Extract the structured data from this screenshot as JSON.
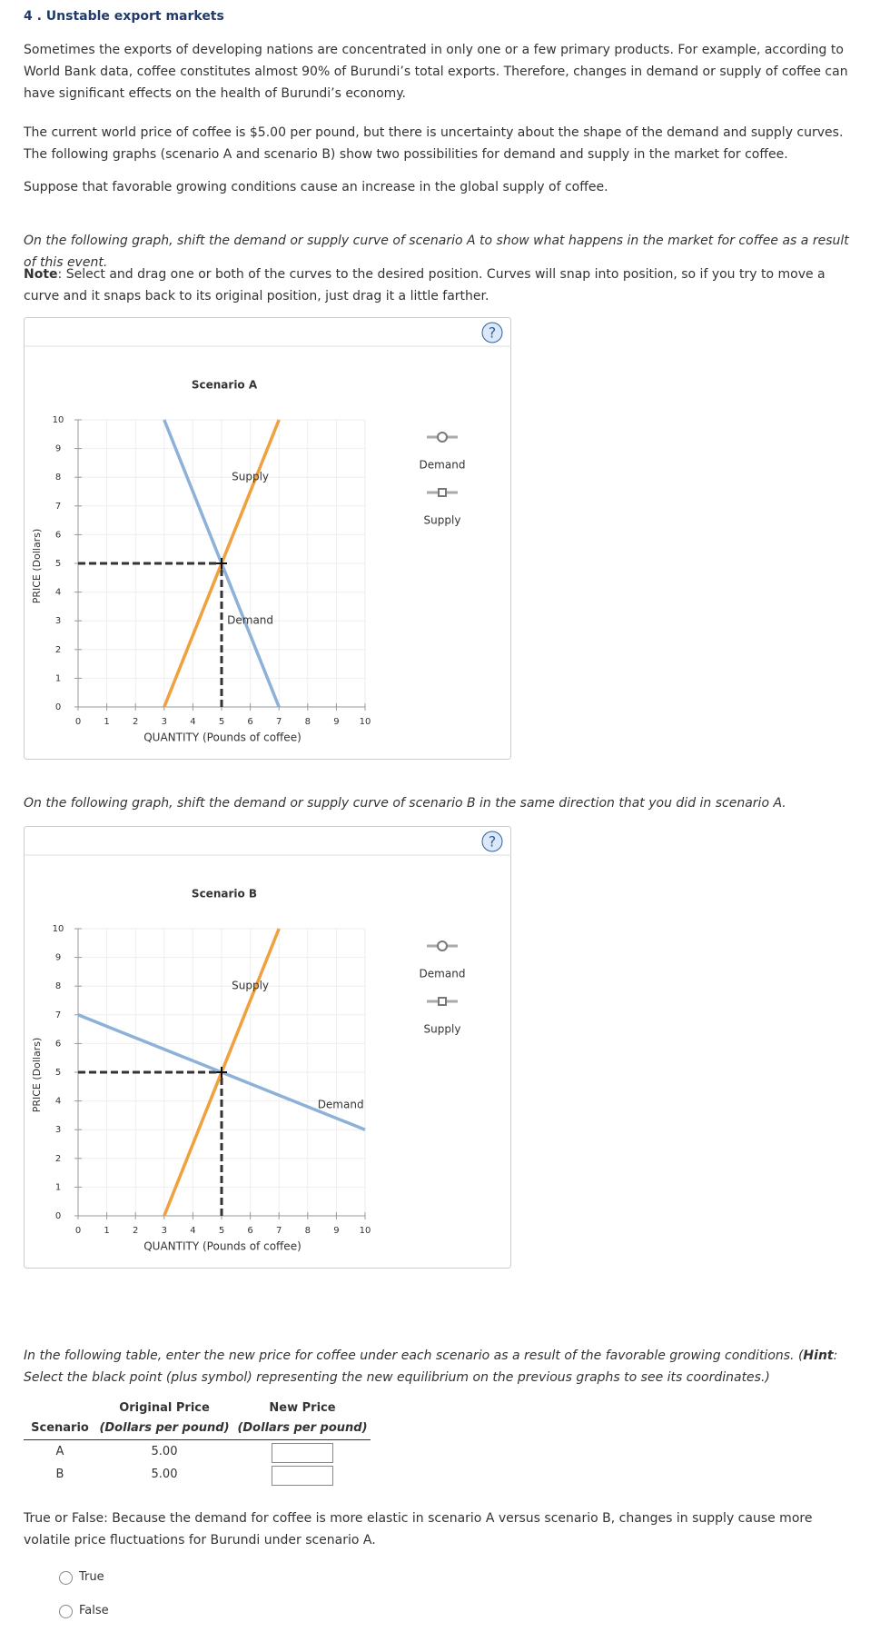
{
  "heading": "4 . Unstable export markets",
  "paragraphs": [
    "Sometimes the exports of developing nations are concentrated in only one or a few primary products. For example, according to World Bank data, coffee constitutes almost 90% of Burundi’s total exports. Therefore, changes in demand or supply of coffee can have significant effects on the health of Burundi’s economy.",
    "The current world price of coffee is $5.00 per pound, but there is uncertainty about the shape of the demand and supply curves. The following graphs (scenario A and scenario B) show two possibilities for demand and supply in the market for coffee.",
    "Suppose that favorable growing conditions cause an increase in the global supply of coffee."
  ],
  "instruction_a": "On the following graph, shift the demand or supply curve of scenario A to show what happens in the market for coffee as a result of this event.",
  "note": {
    "label": "Note",
    "text": ": Select and drag one or both of the curves to the desired position. Curves will snap into position, so if you try to move a curve and it snaps back to its original position, just drag it a little farther."
  },
  "instruction_b": "On the following graph, shift the demand or supply curve of scenario B in the same direction that you did in scenario A.",
  "help_icon": "?",
  "chart_data": [
    {
      "type": "line",
      "title": "Scenario A",
      "x_label": "QUANTITY (Pounds of coffee)",
      "y_label": "PRICE (Dollars)",
      "xlim": [
        0,
        10
      ],
      "ylim": [
        0,
        10
      ],
      "xticks": [
        0,
        1,
        2,
        3,
        4,
        5,
        6,
        7,
        8,
        9,
        10
      ],
      "yticks": [
        0,
        1,
        2,
        3,
        4,
        5,
        6,
        7,
        8,
        9,
        10
      ],
      "grid": true,
      "series": [
        {
          "name": "Demand",
          "color": "#8eb1d9",
          "x": [
            3,
            7
          ],
          "values": [
            10,
            0
          ]
        },
        {
          "name": "Supply",
          "color": "#f0a03f",
          "x": [
            3,
            7
          ],
          "values": [
            0,
            10
          ]
        }
      ],
      "equilibrium": {
        "x": 5,
        "y": 5
      }
    },
    {
      "type": "line",
      "title": "Scenario B",
      "x_label": "QUANTITY (Pounds of coffee)",
      "y_label": "PRICE (Dollars)",
      "xlim": [
        0,
        10
      ],
      "ylim": [
        0,
        10
      ],
      "xticks": [
        0,
        1,
        2,
        3,
        4,
        5,
        6,
        7,
        8,
        9,
        10
      ],
      "yticks": [
        0,
        1,
        2,
        3,
        4,
        5,
        6,
        7,
        8,
        9,
        10
      ],
      "grid": true,
      "series": [
        {
          "name": "Demand",
          "color": "#8eb1d9",
          "x": [
            0,
            10
          ],
          "values": [
            7,
            3
          ]
        },
        {
          "name": "Supply",
          "color": "#f0a03f",
          "x": [
            3,
            7
          ],
          "values": [
            0,
            10
          ]
        }
      ],
      "equilibrium": {
        "x": 5,
        "y": 5
      }
    }
  ],
  "table_instruction": {
    "before": "In the following table, enter the new price for coffee under each scenario as a result of the favorable growing conditions. (",
    "hint_label": "Hint",
    "after": ": Select the black point (plus symbol) representing the new equilibrium on the previous graphs to see its coordinates.)"
  },
  "table": {
    "columns": [
      {
        "title": "Scenario"
      },
      {
        "title": "Original Price",
        "unit": "(Dollars per pound)"
      },
      {
        "title": "New Price",
        "unit": "(Dollars per pound)"
      }
    ],
    "rows": [
      [
        "A",
        "5.00"
      ],
      [
        "B",
        "5.00"
      ]
    ]
  },
  "question": "True or False: Because the demand for coffee is more elastic in scenario A versus scenario B, changes in supply cause more volatile price fluctuations for Burundi under scenario A.",
  "options": [
    "True",
    "False"
  ]
}
